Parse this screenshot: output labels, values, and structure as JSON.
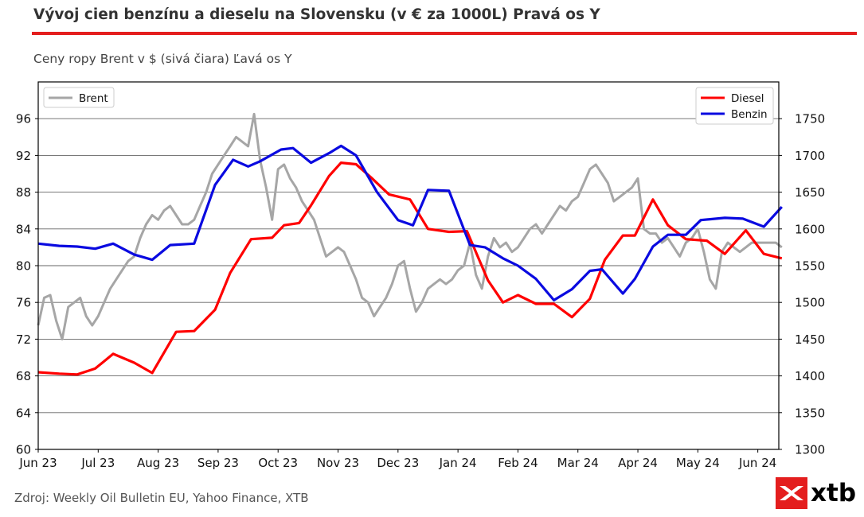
{
  "header": {
    "title": "Vývoj cien benzínu a dieselu na Slovensku (v € za 1000L) Pravá os Y",
    "subtitle": "Ceny ropy Brent v $ (sivá čiara) Ľavá os Y"
  },
  "footer": {
    "source": "Zdroj: Weekly Oil Bulletin EU, Yahoo Finance, XTB",
    "logo_text": "xtb"
  },
  "colors": {
    "title_rule": "#e41e1e",
    "brent": "#a6a6a6",
    "diesel": "#ff0000",
    "benzin": "#0a0ae0",
    "logo": "#e41e1e"
  },
  "chart_data": {
    "type": "line",
    "x_tick_labels": [
      "Jun 23",
      "Jul 23",
      "Aug 23",
      "Sep 23",
      "Oct 23",
      "Nov 23",
      "Dec 23",
      "Jan 24",
      "Feb 24",
      "Mar 24",
      "Apr 24",
      "May 24",
      "Jun 24"
    ],
    "left_axis": {
      "ylim": [
        60,
        100
      ],
      "ticks": [
        60,
        64,
        68,
        72,
        76,
        80,
        84,
        88,
        92,
        96
      ]
    },
    "right_axis": {
      "ylim": [
        1300,
        1800
      ],
      "ticks": [
        1300,
        1350,
        1400,
        1450,
        1500,
        1550,
        1600,
        1650,
        1700,
        1750
      ]
    },
    "grid": true,
    "legend_left": {
      "placement": "top-left",
      "entries": [
        "Brent"
      ]
    },
    "legend_right": {
      "placement": "top-right",
      "entries": [
        "Diesel",
        "Benzin"
      ]
    },
    "series": [
      {
        "name": "Brent",
        "axis": "left",
        "x": [
          0,
          0.1,
          0.2,
          0.3,
          0.4,
          0.5,
          0.6,
          0.7,
          0.8,
          0.9,
          1.0,
          1.1,
          1.2,
          1.3,
          1.4,
          1.5,
          1.6,
          1.7,
          1.8,
          1.9,
          2.0,
          2.1,
          2.2,
          2.3,
          2.4,
          2.5,
          2.6,
          2.7,
          2.8,
          2.9,
          3.0,
          3.1,
          3.2,
          3.3,
          3.4,
          3.5,
          3.6,
          3.7,
          3.8,
          3.9,
          4.0,
          4.1,
          4.2,
          4.3,
          4.4,
          4.5,
          4.6,
          4.7,
          4.8,
          4.9,
          5.0,
          5.1,
          5.2,
          5.3,
          5.4,
          5.5,
          5.6,
          5.7,
          5.8,
          5.9,
          6.0,
          6.1,
          6.2,
          6.3,
          6.4,
          6.5,
          6.6,
          6.7,
          6.8,
          6.9,
          7.0,
          7.1,
          7.2,
          7.3,
          7.4,
          7.5,
          7.6,
          7.7,
          7.8,
          7.9,
          8.0,
          8.1,
          8.2,
          8.3,
          8.4,
          8.5,
          8.6,
          8.7,
          8.8,
          8.9,
          9.0,
          9.1,
          9.2,
          9.3,
          9.4,
          9.5,
          9.6,
          9.7,
          9.8,
          9.9,
          10.0,
          10.1,
          10.2,
          10.3,
          10.4,
          10.5,
          10.6,
          10.7,
          10.8,
          10.9,
          11.0,
          11.1,
          11.2,
          11.3,
          11.4,
          11.5,
          11.6,
          11.7,
          11.8,
          11.9,
          12.0,
          12.1,
          12.2,
          12.3,
          12.4
        ],
        "values": [
          73.5,
          76.5,
          76.8,
          74.0,
          72.0,
          75.5,
          76.0,
          76.5,
          74.5,
          73.5,
          74.5,
          76.0,
          77.5,
          78.5,
          79.5,
          80.5,
          81.0,
          83.0,
          84.5,
          85.5,
          85.0,
          86.0,
          86.5,
          85.5,
          84.5,
          84.5,
          85.0,
          86.5,
          88.0,
          90.0,
          91.0,
          92.0,
          93.0,
          94.0,
          93.5,
          93.0,
          96.5,
          91.5,
          88.5,
          85.0,
          90.5,
          91.0,
          89.5,
          88.5,
          87.0,
          86.0,
          85.0,
          83.0,
          81.0,
          81.5,
          82.0,
          81.5,
          80.0,
          78.5,
          76.5,
          76.0,
          74.5,
          75.5,
          76.5,
          78.0,
          80.0,
          80.5,
          77.5,
          75.0,
          76.0,
          77.5,
          78.0,
          78.5,
          78.0,
          78.5,
          79.5,
          80.0,
          82.5,
          79.0,
          77.5,
          81.0,
          83.0,
          82.0,
          82.5,
          81.5,
          82.0,
          83.0,
          84.0,
          84.5,
          83.5,
          84.5,
          85.5,
          86.5,
          86.0,
          87.0,
          87.5,
          89.0,
          90.5,
          91.0,
          90.0,
          89.0,
          87.0,
          87.5,
          88.0,
          88.5,
          89.5,
          84.0,
          83.5,
          83.5,
          82.5,
          83.0,
          82.0,
          81.0,
          82.5,
          83.0,
          84.0,
          81.5,
          78.5,
          77.5,
          81.5,
          82.5,
          82.0,
          81.5,
          82.0,
          82.5,
          82.5,
          82.5,
          82.5,
          82.5,
          82.0
        ]
      },
      {
        "name": "Diesel",
        "axis": "right",
        "x": [
          0,
          0.35,
          0.65,
          0.95,
          1.25,
          1.6,
          1.9,
          2.3,
          2.6,
          2.95,
          3.2,
          3.55,
          3.9,
          4.1,
          4.35,
          4.55,
          4.85,
          5.05,
          5.3,
          5.55,
          5.85,
          6.2,
          6.5,
          6.85,
          7.15,
          7.5,
          7.75,
          8.0,
          8.3,
          8.6,
          8.9,
          9.2,
          9.45,
          9.75,
          9.95,
          10.25,
          10.5,
          10.8,
          11.15,
          11.45,
          11.8,
          12.1,
          12.4
        ],
        "values": [
          1405,
          1403,
          1402,
          1410,
          1430,
          1418,
          1404,
          1460,
          1461,
          1490,
          1540,
          1586,
          1588,
          1605,
          1608,
          1632,
          1672,
          1690,
          1688,
          1670,
          1647,
          1640,
          1600,
          1596,
          1597,
          1530,
          1500,
          1510,
          1498,
          1498,
          1480,
          1505,
          1558,
          1591,
          1591,
          1640,
          1605,
          1586,
          1584,
          1566,
          1598,
          1566,
          1560
        ],
        "values_note": ""
      },
      {
        "name": "Benzin",
        "axis": "right",
        "x": [
          0,
          0.35,
          0.65,
          0.95,
          1.25,
          1.6,
          1.9,
          2.2,
          2.6,
          2.95,
          3.25,
          3.5,
          3.7,
          4.05,
          4.25,
          4.55,
          4.85,
          5.05,
          5.3,
          5.65,
          6.0,
          6.25,
          6.5,
          6.85,
          7.2,
          7.45,
          7.75,
          8.0,
          8.3,
          8.6,
          8.9,
          9.2,
          9.4,
          9.75,
          9.95,
          10.25,
          10.5,
          10.8,
          11.05,
          11.45,
          11.75,
          12.1,
          12.4
        ],
        "values": [
          1580,
          1577,
          1576,
          1573,
          1580,
          1565,
          1558,
          1578,
          1580,
          1660,
          1694,
          1685,
          1692,
          1708,
          1710,
          1690,
          1703,
          1713,
          1700,
          1650,
          1612,
          1605,
          1653,
          1652,
          1578,
          1575,
          1560,
          1550,
          1532,
          1503,
          1518,
          1543,
          1545,
          1512,
          1532,
          1576,
          1592,
          1592,
          1612,
          1615,
          1614,
          1603,
          1630
        ]
      }
    ]
  }
}
